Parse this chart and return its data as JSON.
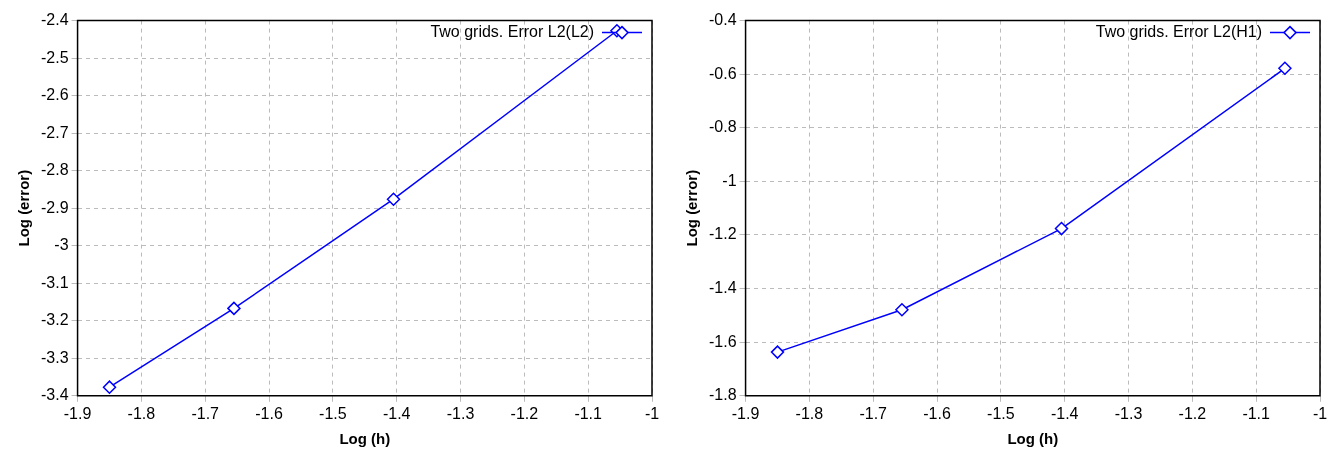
{
  "chart_data": [
    {
      "type": "line",
      "xlabel": "Log (h)",
      "ylabel": "Log (error)",
      "x": [
        -1.85,
        -1.655,
        -1.405,
        -1.055
      ],
      "series": [
        {
          "name": "Two grids. Error L2(L2)",
          "color": "#0000ff",
          "values": [
            -3.377,
            -3.167,
            -2.876,
            -2.427
          ]
        }
      ],
      "xlim": [
        -1.9,
        -1
      ],
      "xticks": [
        -1.9,
        -1.8,
        -1.7,
        -1.6,
        -1.5,
        -1.4,
        -1.3,
        -1.2,
        -1.1,
        -1
      ],
      "ylim": [
        -3.4,
        -2.4
      ],
      "yticks": [
        -3.4,
        -3.3,
        -3.2,
        -3.1,
        -3,
        -2.9,
        -2.8,
        -2.7,
        -2.6,
        -2.5,
        -2.4
      ],
      "grid": true,
      "legend": "top right",
      "marker": "diamond",
      "line_style": "solid"
    },
    {
      "type": "line",
      "xlabel": "Log (h)",
      "ylabel": "Log (error)",
      "x": [
        -1.85,
        -1.655,
        -1.405,
        -1.055
      ],
      "series": [
        {
          "name": "Two grids. Error L2(H1)",
          "color": "#0000ff",
          "values": [
            -1.637,
            -1.479,
            -1.176,
            -0.578
          ]
        }
      ],
      "xlim": [
        -1.9,
        -1
      ],
      "xticks": [
        -1.9,
        -1.8,
        -1.7,
        -1.6,
        -1.5,
        -1.4,
        -1.3,
        -1.2,
        -1.1,
        -1
      ],
      "ylim": [
        -1.8,
        -0.4
      ],
      "yticks": [
        -1.8,
        -1.6,
        -1.4,
        -1.2,
        -1,
        -0.8,
        -0.6,
        -0.4
      ],
      "grid": true,
      "legend": "top right",
      "marker": "diamond",
      "line_style": "solid"
    }
  ]
}
